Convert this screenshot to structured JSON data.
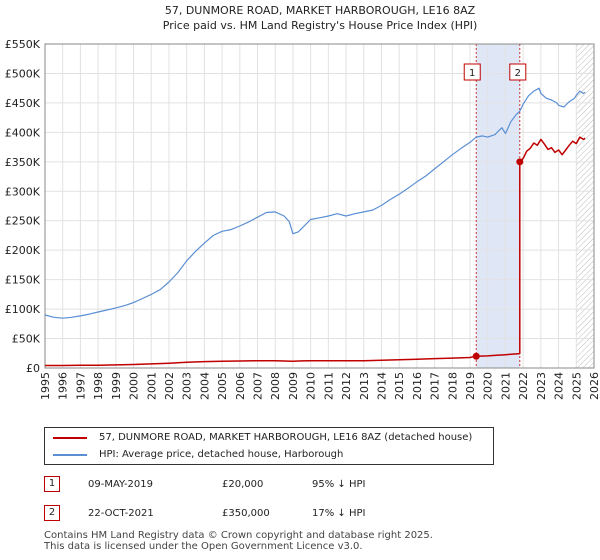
{
  "chart_data": {
    "type": "line",
    "title": "57, DUNMORE ROAD, MARKET HARBOROUGH, LE16 8AZ",
    "subtitle": "Price paid vs. HM Land Registry's House Price Index (HPI)",
    "xlim": [
      1995,
      2026
    ],
    "ylim": [
      0,
      550000
    ],
    "x_ticks": [
      "1995",
      "1996",
      "1997",
      "1998",
      "1999",
      "2000",
      "2001",
      "2002",
      "2003",
      "2004",
      "2005",
      "2006",
      "2007",
      "2008",
      "2009",
      "2010",
      "2011",
      "2012",
      "2013",
      "2014",
      "2015",
      "2016",
      "2017",
      "2018",
      "2019",
      "2020",
      "2021",
      "2022",
      "2023",
      "2024",
      "2025",
      "2026"
    ],
    "y_ticks": [
      {
        "value": 0,
        "label": "£0"
      },
      {
        "value": 50000,
        "label": "£50K"
      },
      {
        "value": 100000,
        "label": "£100K"
      },
      {
        "value": 150000,
        "label": "£150K"
      },
      {
        "value": 200000,
        "label": "£200K"
      },
      {
        "value": 250000,
        "label": "£250K"
      },
      {
        "value": 300000,
        "label": "£300K"
      },
      {
        "value": 350000,
        "label": "£350K"
      },
      {
        "value": 400000,
        "label": "£400K"
      },
      {
        "value": 450000,
        "label": "£450K"
      },
      {
        "value": 500000,
        "label": "£500K"
      },
      {
        "value": 550000,
        "label": "£550K"
      }
    ],
    "grid": true,
    "colors": {
      "property": "#c00000",
      "hpi": "#5b8fd4",
      "shade": "#dfe7f6",
      "event": "#c00000"
    },
    "shaded_range": [
      2019.35,
      2021.81
    ],
    "hatched_from": 2025.0,
    "series": [
      {
        "name": "57, DUNMORE ROAD, MARKET HARBOROUGH, LE16 8AZ (detached house)",
        "color": "#c00000",
        "points": [
          [
            1995.0,
            4200
          ],
          [
            1996.0,
            4300
          ],
          [
            1997.0,
            4500
          ],
          [
            1998.0,
            4800
          ],
          [
            1999.0,
            5200
          ],
          [
            2000.0,
            5900
          ],
          [
            2001.0,
            7000
          ],
          [
            2002.0,
            8200
          ],
          [
            2003.0,
            9700
          ],
          [
            2004.0,
            10800
          ],
          [
            2005.0,
            11400
          ],
          [
            2006.0,
            11900
          ],
          [
            2007.0,
            12400
          ],
          [
            2008.0,
            12300
          ],
          [
            2009.0,
            11600
          ],
          [
            2009.5,
            12000
          ],
          [
            2010.0,
            12300
          ],
          [
            2011.0,
            12300
          ],
          [
            2012.0,
            12200
          ],
          [
            2013.0,
            12400
          ],
          [
            2014.0,
            13100
          ],
          [
            2015.0,
            14000
          ],
          [
            2016.0,
            14900
          ],
          [
            2017.0,
            15900
          ],
          [
            2018.0,
            16800
          ],
          [
            2019.0,
            17900
          ],
          [
            2019.35,
            20000
          ],
          [
            2020.0,
            20500
          ],
          [
            2020.5,
            21500
          ],
          [
            2021.0,
            22500
          ],
          [
            2021.5,
            23800
          ],
          [
            2021.81,
            24500
          ],
          [
            2021.81,
            350000
          ],
          [
            2022.0,
            356000
          ],
          [
            2022.2,
            368000
          ],
          [
            2022.4,
            373000
          ],
          [
            2022.6,
            382000
          ],
          [
            2022.8,
            378000
          ],
          [
            2023.0,
            388000
          ],
          [
            2023.2,
            380000
          ],
          [
            2023.4,
            371000
          ],
          [
            2023.6,
            374000
          ],
          [
            2023.8,
            366000
          ],
          [
            2024.0,
            370000
          ],
          [
            2024.2,
            362000
          ],
          [
            2024.4,
            370000
          ],
          [
            2024.6,
            378000
          ],
          [
            2024.8,
            385000
          ],
          [
            2025.0,
            381000
          ],
          [
            2025.2,
            392000
          ],
          [
            2025.4,
            388000
          ],
          [
            2025.5,
            390000
          ]
        ]
      },
      {
        "name": "HPI: Average price, detached house, Harborough",
        "color": "#5b8fd4",
        "points": [
          [
            1995.0,
            90000
          ],
          [
            1995.5,
            86000
          ],
          [
            1996.0,
            84500
          ],
          [
            1996.5,
            86000
          ],
          [
            1997.0,
            88500
          ],
          [
            1997.5,
            91500
          ],
          [
            1998.0,
            95000
          ],
          [
            1998.5,
            98500
          ],
          [
            1999.0,
            102000
          ],
          [
            1999.5,
            106000
          ],
          [
            2000.0,
            111000
          ],
          [
            2000.5,
            118000
          ],
          [
            2001.0,
            125000
          ],
          [
            2001.5,
            133000
          ],
          [
            2002.0,
            146000
          ],
          [
            2002.5,
            162000
          ],
          [
            2003.0,
            182000
          ],
          [
            2003.5,
            198000
          ],
          [
            2004.0,
            212000
          ],
          [
            2004.5,
            225000
          ],
          [
            2005.0,
            232000
          ],
          [
            2005.5,
            235000
          ],
          [
            2006.0,
            241000
          ],
          [
            2006.5,
            248000
          ],
          [
            2007.0,
            256000
          ],
          [
            2007.5,
            264000
          ],
          [
            2008.0,
            265000
          ],
          [
            2008.5,
            258000
          ],
          [
            2008.8,
            248000
          ],
          [
            2009.0,
            228000
          ],
          [
            2009.3,
            231000
          ],
          [
            2009.6,
            240000
          ],
          [
            2010.0,
            252000
          ],
          [
            2010.5,
            255000
          ],
          [
            2011.0,
            258000
          ],
          [
            2011.5,
            262000
          ],
          [
            2012.0,
            258000
          ],
          [
            2012.5,
            262000
          ],
          [
            2013.0,
            265000
          ],
          [
            2013.5,
            268000
          ],
          [
            2014.0,
            276000
          ],
          [
            2014.5,
            286000
          ],
          [
            2015.0,
            295000
          ],
          [
            2015.5,
            305000
          ],
          [
            2016.0,
            316000
          ],
          [
            2016.5,
            326000
          ],
          [
            2017.0,
            338000
          ],
          [
            2017.5,
            350000
          ],
          [
            2018.0,
            362000
          ],
          [
            2018.5,
            373000
          ],
          [
            2019.0,
            383000
          ],
          [
            2019.35,
            392000
          ],
          [
            2019.7,
            394000
          ],
          [
            2020.0,
            392000
          ],
          [
            2020.4,
            396000
          ],
          [
            2020.8,
            408000
          ],
          [
            2021.0,
            398000
          ],
          [
            2021.3,
            418000
          ],
          [
            2021.6,
            430000
          ],
          [
            2021.81,
            436000
          ],
          [
            2022.0,
            448000
          ],
          [
            2022.3,
            462000
          ],
          [
            2022.6,
            470000
          ],
          [
            2022.9,
            475000
          ],
          [
            2023.0,
            466000
          ],
          [
            2023.3,
            458000
          ],
          [
            2023.6,
            455000
          ],
          [
            2023.9,
            450000
          ],
          [
            2024.0,
            446000
          ],
          [
            2024.3,
            443000
          ],
          [
            2024.6,
            452000
          ],
          [
            2024.9,
            458000
          ],
          [
            2025.0,
            463000
          ],
          [
            2025.2,
            470000
          ],
          [
            2025.4,
            466000
          ],
          [
            2025.5,
            468000
          ]
        ]
      }
    ],
    "events": [
      {
        "label": "1",
        "x": 2019.35,
        "y": 20000
      },
      {
        "label": "2",
        "x": 2021.81,
        "y": 350000
      }
    ]
  },
  "legend": {
    "property_label": "57, DUNMORE ROAD, MARKET HARBOROUGH, LE16 8AZ (detached house)",
    "hpi_label": "HPI: Average price, detached house, Harborough"
  },
  "transactions": [
    {
      "num": "1",
      "date": "09-MAY-2019",
      "price": "£20,000",
      "hpi": "95% ↓ HPI"
    },
    {
      "num": "2",
      "date": "22-OCT-2021",
      "price": "£350,000",
      "hpi": "17% ↓ HPI"
    }
  ],
  "footer": {
    "line1": "Contains HM Land Registry data © Crown copyright and database right 2025.",
    "line2": "This data is licensed under the Open Government Licence v3.0."
  }
}
